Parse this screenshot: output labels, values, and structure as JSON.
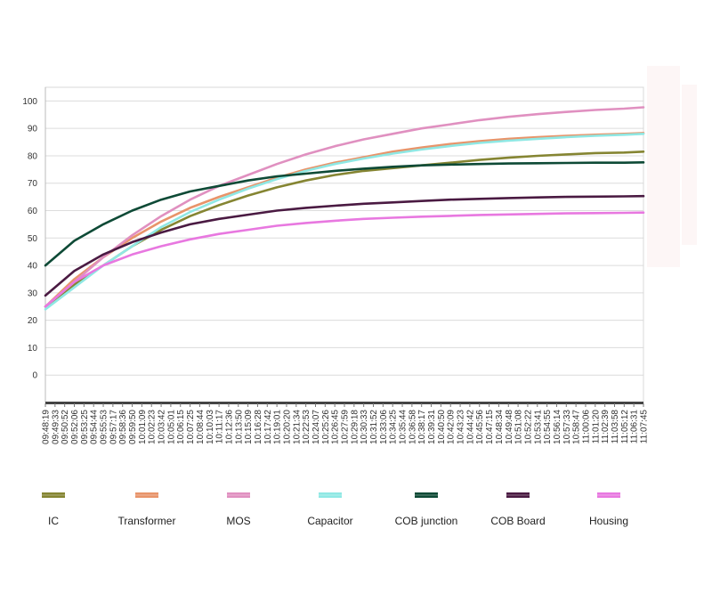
{
  "chart_data": {
    "type": "line",
    "title": "",
    "xlabel": "",
    "ylabel": "",
    "ylim": [
      -10,
      105
    ],
    "yticks": [
      0,
      10,
      20,
      30,
      40,
      50,
      60,
      70,
      80,
      90,
      100
    ],
    "grid": true,
    "legend_position": "bottom",
    "x_ticks": [
      "09:48:19",
      "09:49:33",
      "09:50:52",
      "09:52:06",
      "09:53:25",
      "09:54:44",
      "09:55:53",
      "09:57:17",
      "09:58:36",
      "09:59:50",
      "10:01:09",
      "10:02:23",
      "10:03:42",
      "10:05:01",
      "10:06:15",
      "10:07:25",
      "10:08:44",
      "10:10:03",
      "10:11:17",
      "10:12:36",
      "10:13:50",
      "10:15:09",
      "10:16:28",
      "10:17:42",
      "10:19:01",
      "10:20:20",
      "10:21:34",
      "10:22:53",
      "10:24:07",
      "10:25:26",
      "10:26:45",
      "10:27:59",
      "10:29:18",
      "10:30:33",
      "10:31:52",
      "10:33:06",
      "10:34:25",
      "10:35:44",
      "10:36:58",
      "10:38:17",
      "10:39:31",
      "10:40:50",
      "10:42:09",
      "10:43:23",
      "10:44:42",
      "10:45:56",
      "10:47:15",
      "10:48:34",
      "10:49:48",
      "10:51:08",
      "10:52:22",
      "10:53:41",
      "10:54:55",
      "10:56:14",
      "10:57:33",
      "10:58:47",
      "11:00:06",
      "11:01:20",
      "11:02:39",
      "11:03:58",
      "11:05:12",
      "11:06:31",
      "11:07:45"
    ],
    "series_x_index": [
      0,
      3,
      6,
      9,
      12,
      15,
      18,
      21,
      24,
      27,
      30,
      33,
      36,
      39,
      42,
      45,
      48,
      51,
      54,
      57,
      60,
      62
    ],
    "series": [
      {
        "name": "IC",
        "color": "#858532",
        "values": [
          25,
          33,
          40,
          47,
          53,
          58,
          62,
          65.5,
          68.5,
          71,
          73,
          74.5,
          75.5,
          76.5,
          77.5,
          78.5,
          79.3,
          80,
          80.5,
          81,
          81.2,
          81.5
        ]
      },
      {
        "name": "Transformer",
        "color": "#e8946a",
        "values": [
          25,
          35,
          43,
          50,
          56,
          61,
          65,
          68.5,
          72,
          75,
          77.5,
          79.5,
          81.5,
          83,
          84.3,
          85.3,
          86.2,
          86.8,
          87.3,
          87.7,
          88,
          88.3
        ]
      },
      {
        "name": "MOS",
        "color": "#e090c0",
        "values": [
          25,
          34,
          43,
          51,
          58,
          64,
          69,
          73,
          77,
          80.5,
          83.5,
          86,
          88,
          90,
          91.5,
          93,
          94.2,
          95.2,
          96,
          96.7,
          97.2,
          97.7
        ]
      },
      {
        "name": "Capacitor",
        "color": "#8fe8e4",
        "values": [
          24,
          32,
          40,
          47,
          54,
          59.5,
          64,
          68,
          71.5,
          74.5,
          77,
          79,
          80.8,
          82.3,
          83.6,
          84.7,
          85.5,
          86.2,
          86.8,
          87.3,
          87.7,
          88
        ]
      },
      {
        "name": "COB  junction",
        "color": "#0e4a36",
        "values": [
          40,
          49,
          55,
          60,
          64,
          67,
          69,
          71,
          72.5,
          73.5,
          74.5,
          75.3,
          76,
          76.5,
          76.8,
          77,
          77.2,
          77.3,
          77.4,
          77.5,
          77.5,
          77.6
        ]
      },
      {
        "name": "COB Board",
        "color": "#4a1a42",
        "values": [
          29,
          38,
          44,
          48.5,
          52,
          55,
          57,
          58.5,
          60,
          61,
          61.8,
          62.5,
          63,
          63.5,
          64,
          64.3,
          64.6,
          64.8,
          65,
          65.1,
          65.2,
          65.3
        ]
      },
      {
        "name": "Housing",
        "color": "#e878e0",
        "values": [
          25,
          34,
          40,
          44,
          47,
          49.5,
          51.5,
          53,
          54.5,
          55.5,
          56.3,
          57,
          57.4,
          57.8,
          58.1,
          58.4,
          58.6,
          58.8,
          59,
          59.1,
          59.2,
          59.3
        ]
      }
    ]
  }
}
